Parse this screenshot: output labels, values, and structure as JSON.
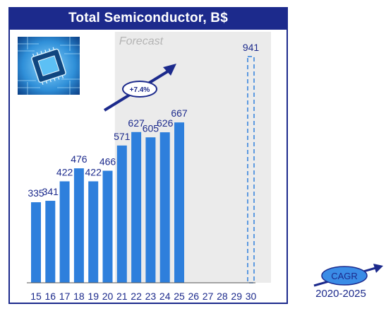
{
  "title": "Total Semiconductor, B$",
  "forecast_label": "Forecast",
  "growth_badge": "+7.4%",
  "cagr": {
    "label": "CAGR",
    "period": "2020-2025"
  },
  "image": {
    "name": "semiconductor-chip-image"
  },
  "colors": {
    "banner": "#1c2a8c",
    "bar": "#2e7fdc",
    "forecast_shade": "#ebebeb",
    "text": "#1c2a8c",
    "cagr_fill": "#3a8ce6"
  },
  "chart_data": {
    "type": "bar",
    "title": "Total Semiconductor, B$",
    "categories": [
      "15",
      "16",
      "17",
      "18",
      "19",
      "20",
      "21",
      "22",
      "23",
      "24",
      "25",
      "26",
      "27",
      "28",
      "29",
      "30"
    ],
    "values": [
      335,
      341,
      422,
      476,
      422,
      466,
      571,
      627,
      605,
      626,
      667,
      null,
      null,
      null,
      null,
      941
    ],
    "value_labels": [
      "335",
      "341",
      "422",
      "476",
      "422",
      "466",
      "571",
      "627",
      "605",
      "626",
      "667",
      "",
      "",
      "",
      "",
      "941"
    ],
    "dashed_categories": [
      "30"
    ],
    "forecast_start": "21",
    "ylim": [
      0,
      1000
    ],
    "grid": false,
    "legend": "none"
  }
}
